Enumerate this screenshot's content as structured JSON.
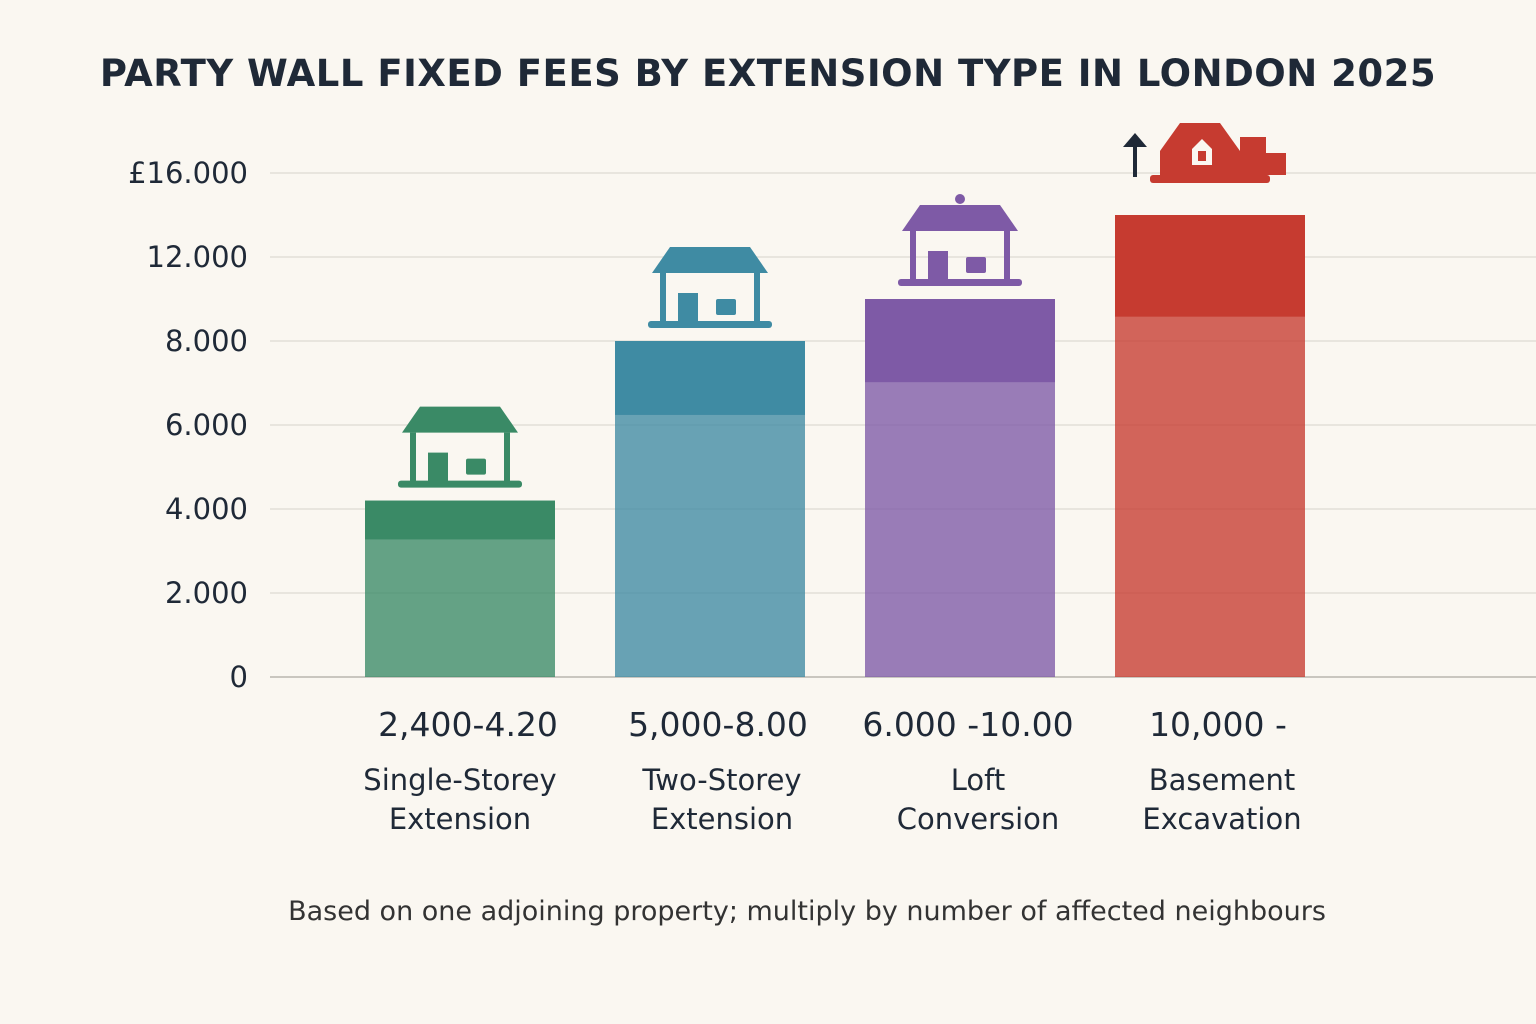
{
  "chart_data": {
    "type": "bar",
    "title": "PARTY WALL FIXED FEES BY EXTENSION TYPE IN LONDON 2025",
    "xlabel": "",
    "ylabel": "",
    "ylim": [
      0,
      16000
    ],
    "y_ticks": [
      {
        "value": 0,
        "label": "0"
      },
      {
        "value": 2000,
        "label": "2.000"
      },
      {
        "value": 4000,
        "label": "4.000"
      },
      {
        "value": 6000,
        "label": "6.000"
      },
      {
        "value": 8000,
        "label": "8.000"
      },
      {
        "value": 12000,
        "label": "12.000"
      },
      {
        "value": 16000,
        "label": "£16.000"
      }
    ],
    "grid": true,
    "categories": [
      {
        "name": [
          "Single-Storey",
          "Extension"
        ],
        "range_label": "2,400-4.20",
        "low": 2400,
        "high": 4200,
        "color": "#3a8a66",
        "icon": "bungalow-house-icon"
      },
      {
        "name": [
          "Two-Storey",
          "Extension"
        ],
        "range_label": "5,000-8.00",
        "low": 5000,
        "high": 8000,
        "color": "#3f8ba3",
        "icon": "two-storey-house-icon"
      },
      {
        "name": [
          "Loft",
          "Conversion"
        ],
        "range_label": "6.000 -10.00",
        "low": 6000,
        "high": 10000,
        "color": "#7e5aa6",
        "icon": "loft-house-icon"
      },
      {
        "name": [
          "Basement",
          "Excavation"
        ],
        "range_label": "10,000 -",
        "low": 10000,
        "high": 14000,
        "color": "#c63b30",
        "icon": "basement-house-icon"
      }
    ],
    "annotation_icon": "up-arrow-icon"
  },
  "footnote": "Based on one adjoining property; multiply by number of affected neighbours"
}
